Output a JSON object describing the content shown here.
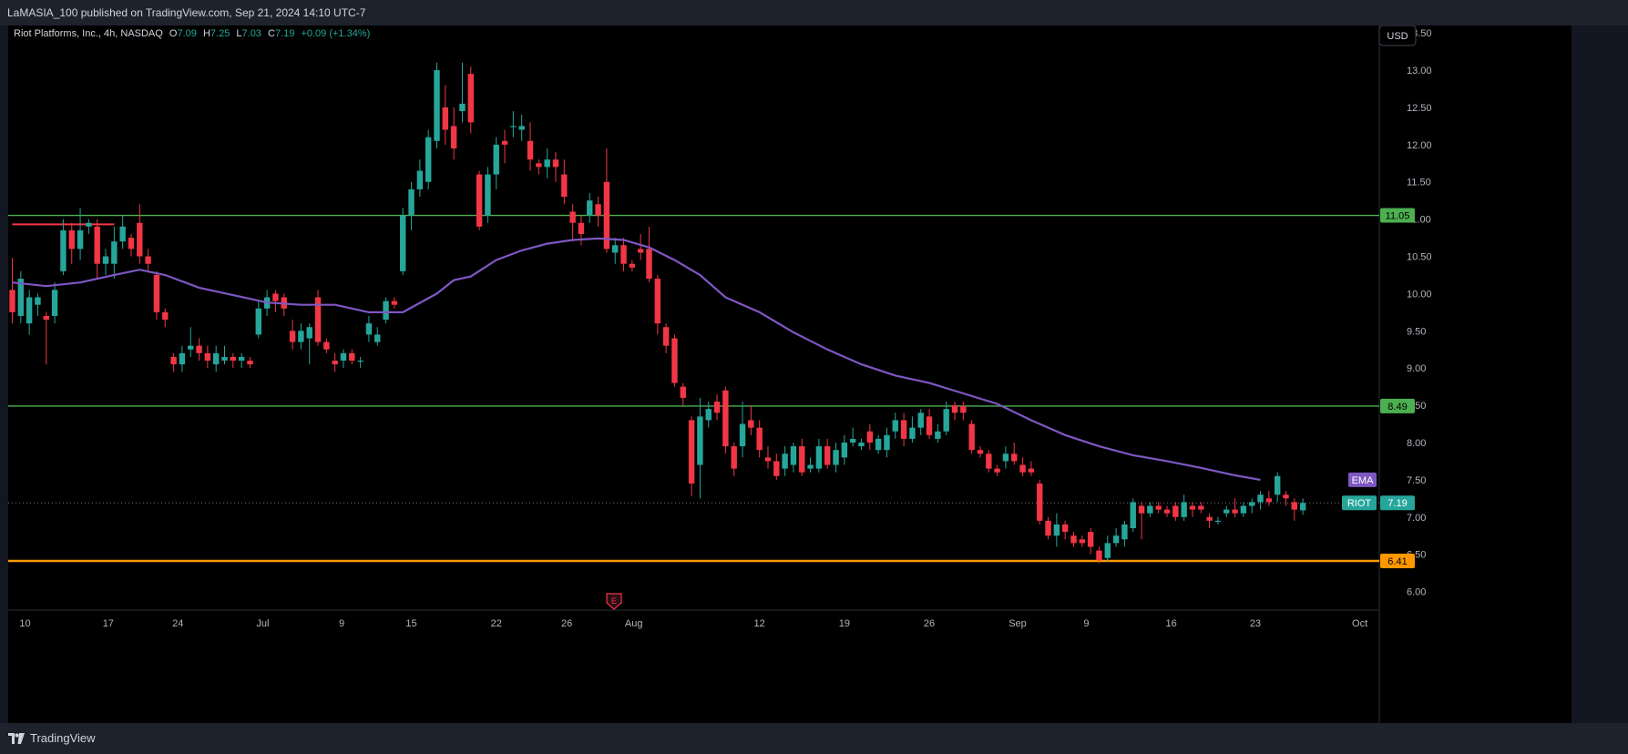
{
  "header": {
    "published": "LaMASIA_100 published on TradingView.com, Sep 21, 2024 14:10 UTC-7"
  },
  "legend": {
    "symbol": "Riot Platforms, Inc., 4h, NASDAQ",
    "o_label": "O",
    "o": "7.09",
    "h_label": "H",
    "h": "7.25",
    "l_label": "L",
    "l": "7.03",
    "c_label": "C",
    "c": "7.19",
    "change": "+0.09 (+1.34%)"
  },
  "currency_button": "USD",
  "footer": {
    "brand": "TradingView"
  },
  "earnings_marker": "E",
  "colors": {
    "up": "#26a69a",
    "down": "#f23645",
    "ema": "#7e57c2",
    "support": "#4caf50",
    "base": "#ff9800",
    "resistance_short": "#f23645"
  },
  "chart_data": {
    "type": "candlestick",
    "symbol": "RIOT",
    "interval": "4h",
    "exchange": "NASDAQ",
    "y_axis": {
      "range": [
        5.75,
        13.6
      ],
      "ticks": [
        "13.50",
        "13.00",
        "12.50",
        "12.00",
        "11.50",
        "11.00",
        "10.50",
        "10.00",
        "9.50",
        "9.00",
        "8.50",
        "8.00",
        "7.50",
        "7.00",
        "6.50",
        "6.00"
      ]
    },
    "x_axis": {
      "ticks": [
        {
          "label": "10",
          "bar": 1.5
        },
        {
          "label": "17",
          "bar": 11.3
        },
        {
          "label": "24",
          "bar": 19.5
        },
        {
          "label": "Jul",
          "bar": 29.5
        },
        {
          "label": "9",
          "bar": 38.8
        },
        {
          "label": "15",
          "bar": 47
        },
        {
          "label": "22",
          "bar": 57
        },
        {
          "label": "26",
          "bar": 65.3
        },
        {
          "label": "Aug",
          "bar": 73.2
        },
        {
          "label": "12",
          "bar": 88
        },
        {
          "label": "19",
          "bar": 98
        },
        {
          "label": "26",
          "bar": 108
        },
        {
          "label": "Sep",
          "bar": 118.4
        },
        {
          "label": "9",
          "bar": 126.5
        },
        {
          "label": "16",
          "bar": 136.5
        },
        {
          "label": "23",
          "bar": 146.4
        },
        {
          "label": "Oct",
          "bar": 158.7
        }
      ]
    },
    "horizontal_lines": [
      {
        "price": 11.05,
        "label": "11.05",
        "color": "#4caf50"
      },
      {
        "price": 8.49,
        "label": "8.49",
        "color": "#4caf50"
      },
      {
        "price": 6.41,
        "label": "6.41",
        "color": "#ff9800"
      }
    ],
    "short_line": {
      "price": 10.93,
      "from_bar": 0,
      "to_bar": 12,
      "color": "#f23645"
    },
    "price_labels": [
      {
        "name": "EMA",
        "value": "7.50",
        "color": "#7e57c2"
      },
      {
        "name": "RIOT",
        "value": "7.19",
        "color": "#26a69a"
      }
    ],
    "last_price": 7.19,
    "earnings_bar": 72,
    "ema": [
      [
        0,
        10.15
      ],
      [
        4,
        10.1
      ],
      [
        8,
        10.15
      ],
      [
        12,
        10.25
      ],
      [
        15,
        10.32
      ],
      [
        18,
        10.25
      ],
      [
        22,
        10.08
      ],
      [
        26,
        9.98
      ],
      [
        30,
        9.88
      ],
      [
        34,
        9.85
      ],
      [
        38,
        9.85
      ],
      [
        42,
        9.75
      ],
      [
        46,
        9.75
      ],
      [
        50,
        10.0
      ],
      [
        52,
        10.18
      ],
      [
        54,
        10.23
      ],
      [
        57,
        10.45
      ],
      [
        60,
        10.58
      ],
      [
        63,
        10.67
      ],
      [
        66,
        10.72
      ],
      [
        69,
        10.74
      ],
      [
        72,
        10.72
      ],
      [
        75,
        10.62
      ],
      [
        78,
        10.45
      ],
      [
        81,
        10.25
      ],
      [
        84,
        9.95
      ],
      [
        88,
        9.75
      ],
      [
        92,
        9.48
      ],
      [
        96,
        9.25
      ],
      [
        100,
        9.05
      ],
      [
        104,
        8.9
      ],
      [
        108,
        8.8
      ],
      [
        112,
        8.66
      ],
      [
        116,
        8.52
      ],
      [
        120,
        8.3
      ],
      [
        124,
        8.1
      ],
      [
        128,
        7.95
      ],
      [
        132,
        7.83
      ],
      [
        136,
        7.75
      ],
      [
        140,
        7.66
      ],
      [
        144,
        7.56
      ],
      [
        147,
        7.5
      ]
    ],
    "candles": [
      [
        10.05,
        9.75,
        10.48,
        9.6
      ],
      [
        9.7,
        10.2,
        10.3,
        9.6
      ],
      [
        9.6,
        9.95,
        10.05,
        9.45
      ],
      [
        9.85,
        9.95,
        10.0,
        9.7
      ],
      [
        9.7,
        9.65,
        9.75,
        9.05
      ],
      [
        9.7,
        10.05,
        10.15,
        9.6
      ],
      [
        10.3,
        10.85,
        11.0,
        10.25
      ],
      [
        10.85,
        10.6,
        10.95,
        10.4
      ],
      [
        10.6,
        10.85,
        11.15,
        10.45
      ],
      [
        10.9,
        10.95,
        11.0,
        10.8
      ],
      [
        10.9,
        10.4,
        11.0,
        10.2
      ],
      [
        10.4,
        10.5,
        10.6,
        10.25
      ],
      [
        10.4,
        10.7,
        10.9,
        10.2
      ],
      [
        10.7,
        10.9,
        11.05,
        10.6
      ],
      [
        10.75,
        10.6,
        10.8,
        10.5
      ],
      [
        10.95,
        10.5,
        11.2,
        10.4
      ],
      [
        10.5,
        10.4,
        10.6,
        10.3
      ],
      [
        10.25,
        9.75,
        10.3,
        9.65
      ],
      [
        9.75,
        9.65,
        9.8,
        9.55
      ],
      [
        9.15,
        9.05,
        9.2,
        8.95
      ],
      [
        9.05,
        9.2,
        9.3,
        8.95
      ],
      [
        9.25,
        9.3,
        9.55,
        9.15
      ],
      [
        9.3,
        9.2,
        9.4,
        9.1
      ],
      [
        9.2,
        9.1,
        9.3,
        9.0
      ],
      [
        9.05,
        9.2,
        9.3,
        8.95
      ],
      [
        9.1,
        9.15,
        9.3,
        9.05
      ],
      [
        9.15,
        9.1,
        9.2,
        9.0
      ],
      [
        9.1,
        9.15,
        9.2,
        9.0
      ],
      [
        9.1,
        9.05,
        9.15,
        9.0
      ],
      [
        9.45,
        9.8,
        9.9,
        9.4
      ],
      [
        9.8,
        9.95,
        10.05,
        9.7
      ],
      [
        10.0,
        9.9,
        10.05,
        9.75
      ],
      [
        9.95,
        9.8,
        10.0,
        9.7
      ],
      [
        9.5,
        9.35,
        9.65,
        9.25
      ],
      [
        9.35,
        9.5,
        9.6,
        9.25
      ],
      [
        9.4,
        9.55,
        9.6,
        9.05
      ],
      [
        9.95,
        9.35,
        10.05,
        9.3
      ],
      [
        9.35,
        9.25,
        9.4,
        9.2
      ],
      [
        9.1,
        9.05,
        9.2,
        8.95
      ],
      [
        9.1,
        9.2,
        9.25,
        9.0
      ],
      [
        9.2,
        9.1,
        9.25,
        9.05
      ],
      [
        9.1,
        9.1,
        9.15,
        9.0
      ],
      [
        9.45,
        9.6,
        9.7,
        9.35
      ],
      [
        9.35,
        9.45,
        9.55,
        9.3
      ],
      [
        9.65,
        9.9,
        9.95,
        9.6
      ],
      [
        9.9,
        9.85,
        9.95,
        9.8
      ],
      [
        10.3,
        11.05,
        11.15,
        10.25
      ],
      [
        11.05,
        11.4,
        11.5,
        10.85
      ],
      [
        11.4,
        11.65,
        11.8,
        11.3
      ],
      [
        11.5,
        12.1,
        12.2,
        11.4
      ],
      [
        12.05,
        13.0,
        13.1,
        11.95
      ],
      [
        12.5,
        12.2,
        12.8,
        12.0
      ],
      [
        12.25,
        11.95,
        12.5,
        11.8
      ],
      [
        12.45,
        12.55,
        13.1,
        12.3
      ],
      [
        12.95,
        12.3,
        13.05,
        12.15
      ],
      [
        11.6,
        10.9,
        11.65,
        10.85
      ],
      [
        11.05,
        11.6,
        11.7,
        10.95
      ],
      [
        11.6,
        12.0,
        12.1,
        11.4
      ],
      [
        12.05,
        12.0,
        12.2,
        11.75
      ],
      [
        12.25,
        12.25,
        12.45,
        12.1
      ],
      [
        12.2,
        12.25,
        12.4,
        12.05
      ],
      [
        12.05,
        11.8,
        12.3,
        11.65
      ],
      [
        11.75,
        11.7,
        11.8,
        11.6
      ],
      [
        11.7,
        11.8,
        11.95,
        11.55
      ],
      [
        11.8,
        11.7,
        11.9,
        11.5
      ],
      [
        11.6,
        11.3,
        11.8,
        11.2
      ],
      [
        11.1,
        10.95,
        11.2,
        10.7
      ],
      [
        10.95,
        10.8,
        11.05,
        10.65
      ],
      [
        11.05,
        11.25,
        11.35,
        10.95
      ],
      [
        11.2,
        11.05,
        11.3,
        10.9
      ],
      [
        11.5,
        10.6,
        11.95,
        10.55
      ],
      [
        10.55,
        10.65,
        10.75,
        10.4
      ],
      [
        10.65,
        10.4,
        10.75,
        10.3
      ],
      [
        10.4,
        10.35,
        10.45,
        10.3
      ],
      [
        10.6,
        10.55,
        10.8,
        10.45
      ],
      [
        10.6,
        10.2,
        10.9,
        10.15
      ],
      [
        10.2,
        9.6,
        10.25,
        9.45
      ],
      [
        9.55,
        9.3,
        9.6,
        9.2
      ],
      [
        9.4,
        8.8,
        9.45,
        8.75
      ],
      [
        8.75,
        8.6,
        8.8,
        8.5
      ],
      [
        8.3,
        7.45,
        8.35,
        7.28
      ],
      [
        7.7,
        8.35,
        8.6,
        7.25
      ],
      [
        8.3,
        8.45,
        8.55,
        8.2
      ],
      [
        8.55,
        8.4,
        8.65,
        8.3
      ],
      [
        8.7,
        7.95,
        8.75,
        7.85
      ],
      [
        7.95,
        7.65,
        8.0,
        7.55
      ],
      [
        7.95,
        8.25,
        8.55,
        7.8
      ],
      [
        8.3,
        8.2,
        8.5,
        8.1
      ],
      [
        8.2,
        7.9,
        8.3,
        7.8
      ],
      [
        7.8,
        7.75,
        7.95,
        7.65
      ],
      [
        7.75,
        7.55,
        7.85,
        7.5
      ],
      [
        7.65,
        7.85,
        7.95,
        7.55
      ],
      [
        7.7,
        7.95,
        8.0,
        7.6
      ],
      [
        7.95,
        7.6,
        8.05,
        7.55
      ],
      [
        7.65,
        7.7,
        7.8,
        7.6
      ],
      [
        7.65,
        7.95,
        8.05,
        7.6
      ],
      [
        7.95,
        7.7,
        8.05,
        7.65
      ],
      [
        7.7,
        7.9,
        8.0,
        7.6
      ],
      [
        7.8,
        8.0,
        8.1,
        7.7
      ],
      [
        8.0,
        8.05,
        8.2,
        7.95
      ],
      [
        7.95,
        8.0,
        8.05,
        7.9
      ],
      [
        8.15,
        8.0,
        8.25,
        7.9
      ],
      [
        7.9,
        8.05,
        8.1,
        7.85
      ],
      [
        7.9,
        8.1,
        8.2,
        7.8
      ],
      [
        8.15,
        8.3,
        8.4,
        8.05
      ],
      [
        8.3,
        8.05,
        8.4,
        7.95
      ],
      [
        8.05,
        8.2,
        8.35,
        8.0
      ],
      [
        8.2,
        8.4,
        8.45,
        8.1
      ],
      [
        8.35,
        8.1,
        8.45,
        8.05
      ],
      [
        8.05,
        8.15,
        8.25,
        8.0
      ],
      [
        8.15,
        8.45,
        8.55,
        8.1
      ],
      [
        8.5,
        8.4,
        8.55,
        8.3
      ],
      [
        8.49,
        8.4,
        8.55,
        8.3
      ],
      [
        8.25,
        7.9,
        8.3,
        7.85
      ],
      [
        7.9,
        7.85,
        7.95,
        7.8
      ],
      [
        7.85,
        7.65,
        7.9,
        7.6
      ],
      [
        7.65,
        7.6,
        7.7,
        7.55
      ],
      [
        7.75,
        7.85,
        7.95,
        7.65
      ],
      [
        7.85,
        7.75,
        8.0,
        7.7
      ],
      [
        7.7,
        7.6,
        7.8,
        7.55
      ],
      [
        7.65,
        7.6,
        7.75,
        7.55
      ],
      [
        7.45,
        6.95,
        7.5,
        6.9
      ],
      [
        6.95,
        6.75,
        7.0,
        6.7
      ],
      [
        6.75,
        6.9,
        7.05,
        6.6
      ],
      [
        6.9,
        6.8,
        6.95,
        6.7
      ],
      [
        6.75,
        6.65,
        6.8,
        6.6
      ],
      [
        6.7,
        6.65,
        6.75,
        6.6
      ],
      [
        6.8,
        6.6,
        6.85,
        6.5
      ],
      [
        6.55,
        6.42,
        6.6,
        6.38
      ],
      [
        6.45,
        6.65,
        6.75,
        6.4
      ],
      [
        6.65,
        6.75,
        6.85,
        6.6
      ],
      [
        6.7,
        6.9,
        6.95,
        6.6
      ],
      [
        6.85,
        7.2,
        7.25,
        6.8
      ],
      [
        7.15,
        7.05,
        7.2,
        6.7
      ],
      [
        7.05,
        7.15,
        7.2,
        7.0
      ],
      [
        7.15,
        7.1,
        7.2,
        7.05
      ],
      [
        7.1,
        7.05,
        7.15,
        7.0
      ],
      [
        7.15,
        7.0,
        7.2,
        6.95
      ],
      [
        7.0,
        7.2,
        7.3,
        6.95
      ],
      [
        7.15,
        7.1,
        7.2,
        7.0
      ],
      [
        7.15,
        7.1,
        7.2,
        7.05
      ],
      [
        7.0,
        6.95,
        7.05,
        6.85
      ],
      [
        6.95,
        6.95,
        7.0,
        6.9
      ],
      [
        7.05,
        7.1,
        7.15,
        7.0
      ],
      [
        7.1,
        7.05,
        7.25,
        7.0
      ],
      [
        7.05,
        7.15,
        7.2,
        7.0
      ],
      [
        7.15,
        7.2,
        7.25,
        7.05
      ],
      [
        7.2,
        7.3,
        7.35,
        7.1
      ],
      [
        7.25,
        7.2,
        7.35,
        7.15
      ],
      [
        7.3,
        7.55,
        7.6,
        7.2
      ],
      [
        7.3,
        7.25,
        7.35,
        7.15
      ],
      [
        7.2,
        7.1,
        7.25,
        6.95
      ],
      [
        7.09,
        7.19,
        7.25,
        7.03
      ]
    ]
  }
}
